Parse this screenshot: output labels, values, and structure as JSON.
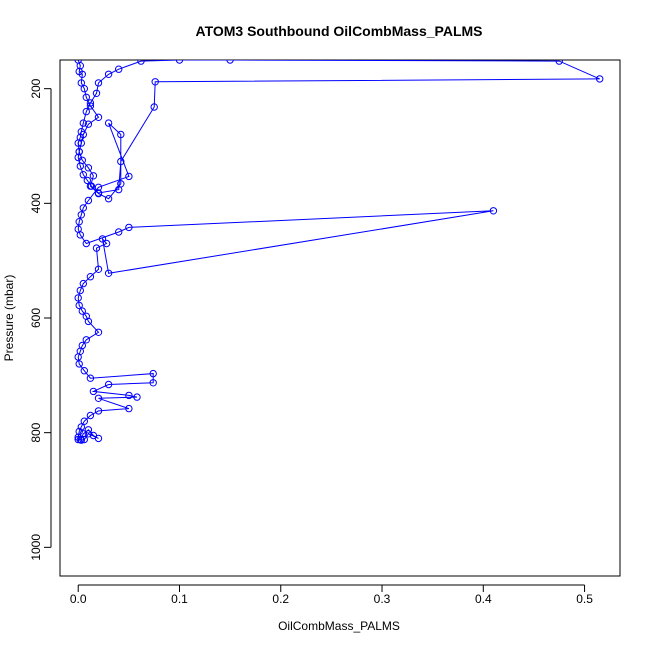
{
  "chart_data": {
    "type": "line",
    "title": "ATOM3 Southbound OilCombMass_PALMS",
    "xlabel": "OilCombMass_PALMS",
    "ylabel": "Pressure (mbar)",
    "xlim": [
      -0.018,
      0.535
    ],
    "ylim": [
      1050,
      150
    ],
    "y_reversed": true,
    "x_ticks": [
      0.0,
      0.1,
      0.2,
      0.3,
      0.4,
      0.5
    ],
    "x_tick_labels": [
      "0.0",
      "0.1",
      "0.2",
      "0.3",
      "0.4",
      "0.5"
    ],
    "y_ticks": [
      200,
      400,
      600,
      800,
      1000
    ],
    "y_tick_labels": [
      "200",
      "400",
      "600",
      "800",
      "1000"
    ],
    "grid": false,
    "legend": "none",
    "series": [
      {
        "color": "#0000ff",
        "marker": "open-circle",
        "x": [
          0.0,
          0.002,
          0.001,
          0.004,
          0.003,
          0.006,
          0.008,
          0.012,
          0.02,
          0.01,
          0.005,
          0.003,
          0.001,
          0.0,
          0.002,
          0.005,
          0.009,
          0.013,
          0.02,
          0.04,
          0.042,
          0.075,
          0.076,
          0.515,
          0.475,
          0.15,
          0.1,
          0.062,
          0.04,
          0.03,
          0.02,
          0.018,
          0.012,
          0.008,
          0.005,
          0.003,
          0.002,
          0.0,
          0.001,
          0.004,
          0.01,
          0.015,
          0.012,
          0.02,
          0.03,
          0.042,
          0.042,
          0.03,
          0.05,
          0.02,
          0.01,
          0.005,
          0.003,
          0.001,
          0.0,
          0.002,
          0.008,
          0.04,
          0.05,
          0.41,
          0.03,
          0.024,
          0.028,
          0.018,
          0.02,
          0.012,
          0.005,
          0.002,
          0.0,
          0.001,
          0.004,
          0.008,
          0.01,
          0.02,
          0.008,
          0.004,
          0.002,
          0.0,
          0.001,
          0.006,
          0.012,
          0.074,
          0.074,
          0.03,
          0.015,
          0.05,
          0.058,
          0.02,
          0.05,
          0.02,
          0.012,
          0.006,
          0.003,
          0.001,
          0.0,
          0.002,
          0.005,
          0.01,
          0.015,
          0.02,
          0.01,
          0.006,
          0.003,
          0.0
        ],
        "y": [
          150,
          160,
          170,
          175,
          190,
          200,
          215,
          230,
          250,
          262,
          280,
          295,
          310,
          320,
          335,
          350,
          360,
          370,
          382,
          376,
          327,
          232,
          188,
          183,
          152,
          150,
          150,
          152,
          166,
          175,
          190,
          208,
          225,
          240,
          260,
          275,
          285,
          295,
          310,
          325,
          338,
          352,
          370,
          383,
          392,
          366,
          280,
          260,
          353,
          372,
          395,
          408,
          420,
          432,
          445,
          455,
          470,
          450,
          442,
          413,
          522,
          462,
          470,
          478,
          515,
          528,
          540,
          552,
          565,
          578,
          588,
          597,
          606,
          625,
          638,
          648,
          658,
          668,
          680,
          692,
          705,
          697,
          713,
          716,
          728,
          735,
          738,
          740,
          758,
          762,
          770,
          780,
          790,
          798,
          808,
          812,
          802,
          795,
          805,
          810,
          802,
          812,
          813,
          812
        ]
      }
    ]
  }
}
